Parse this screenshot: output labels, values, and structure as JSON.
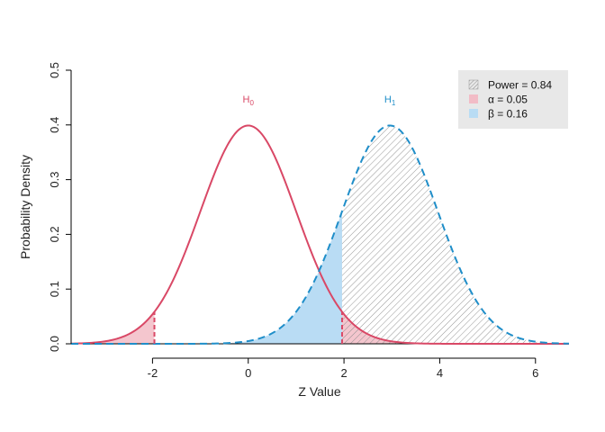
{
  "chart_data": {
    "type": "area",
    "xlabel": "Z Value",
    "ylabel": "Probability Density",
    "xlim": [
      -3.7,
      6.7
    ],
    "ylim": [
      0,
      0.5
    ],
    "x_ticks": [
      -2,
      0,
      2,
      4,
      6
    ],
    "x_tick_labels": [
      "-2",
      "0",
      "2",
      "4",
      "6"
    ],
    "y_ticks": [
      0,
      0.1,
      0.2,
      0.3,
      0.4,
      0.5
    ],
    "y_tick_labels": [
      "0.0",
      "0.1",
      "0.2",
      "0.3",
      "0.4",
      "0.5"
    ],
    "grid": false,
    "series": [
      {
        "name": "H0",
        "label_main": "H",
        "label_sub": "0",
        "mean": 0,
        "sd": 1,
        "line_style": "solid",
        "color": "#d94866"
      },
      {
        "name": "H1",
        "label_main": "H",
        "label_sub": "1",
        "mean": 2.96,
        "sd": 1,
        "line_style": "dashed",
        "color": "#1f8ec9"
      }
    ],
    "critical_values": [
      -1.96,
      1.96
    ],
    "regions": {
      "alpha": {
        "value": 0.05,
        "color": "#f2bcc6"
      },
      "beta": {
        "value": 0.16,
        "color": "#b9dcf4"
      },
      "power": {
        "value": 0.84,
        "pattern": "hatched",
        "color": "#8a8a8a"
      }
    },
    "legend": {
      "position": "top-right",
      "background": "#e8e8e8",
      "entries": [
        "Power = 0.84",
        "α = 0.05",
        "β = 0.16"
      ]
    }
  }
}
